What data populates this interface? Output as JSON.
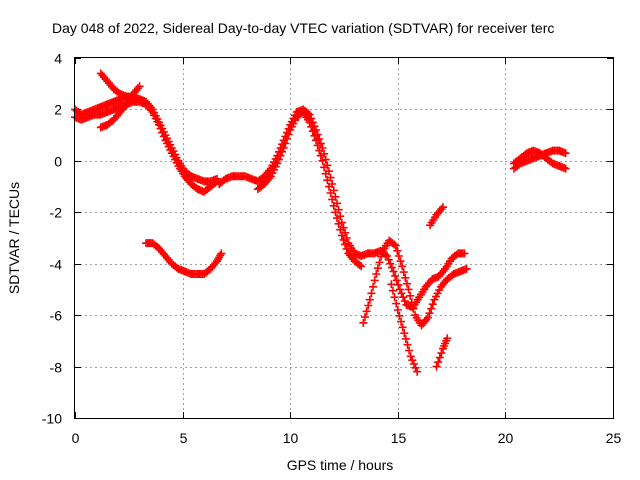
{
  "chart_data": {
    "type": "scatter",
    "title": "Day 048 of 2022, Sidereal Day-to-day VTEC variation (SDTVAR) for receiver terc",
    "xlabel": "GPS time / hours",
    "ylabel": "SDTVAR / TECUs",
    "xlim": [
      0,
      25
    ],
    "ylim": [
      -10,
      4
    ],
    "xticks": [
      "0",
      "5",
      "10",
      "15",
      "20",
      "25"
    ],
    "yticks": [
      "4",
      "2",
      "0",
      "-2",
      "-4",
      "-6",
      "-8",
      "-10"
    ],
    "grid": true,
    "marker": "+",
    "color": "#ff0000",
    "series": [
      {
        "segments": [
          [
            [
              0.0,
              2.0
            ],
            [
              0.3,
              1.8
            ],
            [
              0.6,
              1.9
            ],
            [
              0.9,
              2.0
            ],
            [
              1.2,
              2.1
            ],
            [
              1.5,
              2.2
            ],
            [
              1.8,
              2.3
            ],
            [
              2.1,
              2.4
            ],
            [
              2.4,
              2.5
            ],
            [
              2.7,
              2.5
            ],
            [
              3.0,
              2.4
            ],
            [
              3.3,
              2.3
            ],
            [
              3.6,
              2.0
            ],
            [
              3.9,
              1.5
            ],
            [
              4.2,
              1.0
            ],
            [
              4.5,
              0.5
            ],
            [
              4.8,
              0.0
            ],
            [
              5.1,
              -0.4
            ],
            [
              5.4,
              -0.6
            ],
            [
              5.7,
              -0.7
            ],
            [
              6.0,
              -0.8
            ],
            [
              6.3,
              -0.8
            ],
            [
              6.6,
              -0.7
            ]
          ],
          [
            [
              0.0,
              1.7
            ],
            [
              0.3,
              1.6
            ],
            [
              0.6,
              1.7
            ],
            [
              0.9,
              1.8
            ],
            [
              1.2,
              1.8
            ],
            [
              1.5,
              1.9
            ],
            [
              1.8,
              2.0
            ],
            [
              2.1,
              2.1
            ],
            [
              2.4,
              2.2
            ],
            [
              2.7,
              2.3
            ],
            [
              3.0,
              2.3
            ],
            [
              3.3,
              2.2
            ],
            [
              3.6,
              1.9
            ],
            [
              3.9,
              1.4
            ],
            [
              4.2,
              0.8
            ],
            [
              4.5,
              0.3
            ],
            [
              4.8,
              -0.2
            ],
            [
              5.1,
              -0.6
            ],
            [
              5.4,
              -0.9
            ],
            [
              5.7,
              -1.1
            ],
            [
              6.0,
              -1.2
            ],
            [
              6.3,
              -1.0
            ],
            [
              6.6,
              -0.8
            ]
          ],
          [
            [
              1.2,
              3.4
            ],
            [
              1.5,
              3.1
            ],
            [
              1.8,
              2.8
            ],
            [
              2.1,
              2.6
            ],
            [
              2.4,
              2.5
            ],
            [
              2.7,
              2.4
            ]
          ],
          [
            [
              1.2,
              1.3
            ],
            [
              1.5,
              1.4
            ],
            [
              1.8,
              1.6
            ],
            [
              2.1,
              1.9
            ],
            [
              2.4,
              2.2
            ],
            [
              2.7,
              2.6
            ],
            [
              3.0,
              2.9
            ]
          ],
          [
            [
              3.3,
              -3.2
            ],
            [
              3.6,
              -3.2
            ],
            [
              3.9,
              -3.4
            ],
            [
              4.2,
              -3.7
            ],
            [
              4.5,
              -4.0
            ],
            [
              4.8,
              -4.2
            ],
            [
              5.1,
              -4.3
            ],
            [
              5.4,
              -4.4
            ],
            [
              5.7,
              -4.4
            ],
            [
              6.0,
              -4.4
            ],
            [
              6.3,
              -4.2
            ],
            [
              6.6,
              -3.9
            ],
            [
              6.8,
              -3.6
            ]
          ],
          [
            [
              6.7,
              -0.9
            ],
            [
              7.0,
              -0.7
            ],
            [
              7.3,
              -0.6
            ],
            [
              7.6,
              -0.6
            ],
            [
              7.9,
              -0.6
            ],
            [
              8.2,
              -0.7
            ],
            [
              8.5,
              -0.8
            ],
            [
              8.8,
              -0.6
            ],
            [
              9.1,
              -0.3
            ],
            [
              9.4,
              0.2
            ],
            [
              9.7,
              0.8
            ],
            [
              10.0,
              1.4
            ],
            [
              10.3,
              1.9
            ],
            [
              10.6,
              2.0
            ],
            [
              10.9,
              1.8
            ],
            [
              11.2,
              1.2
            ],
            [
              11.5,
              0.5
            ],
            [
              11.8,
              -0.4
            ],
            [
              12.1,
              -1.4
            ],
            [
              12.4,
              -2.4
            ],
            [
              12.7,
              -3.2
            ],
            [
              13.0,
              -3.6
            ],
            [
              13.3,
              -3.7
            ],
            [
              13.6,
              -3.6
            ],
            [
              13.9,
              -3.6
            ],
            [
              14.2,
              -3.5
            ],
            [
              14.5,
              -3.7
            ],
            [
              14.8,
              -4.3
            ],
            [
              15.1,
              -5.0
            ],
            [
              15.4,
              -5.6
            ],
            [
              15.7,
              -5.7
            ],
            [
              16.0,
              -5.3
            ],
            [
              16.3,
              -4.9
            ],
            [
              16.6,
              -4.6
            ],
            [
              16.9,
              -4.5
            ],
            [
              17.2,
              -4.2
            ],
            [
              17.5,
              -3.8
            ],
            [
              17.8,
              -3.6
            ],
            [
              18.1,
              -3.6
            ]
          ],
          [
            [
              8.5,
              -1.1
            ],
            [
              8.8,
              -0.9
            ],
            [
              9.1,
              -0.6
            ],
            [
              9.4,
              -0.1
            ],
            [
              9.7,
              0.5
            ],
            [
              10.0,
              1.2
            ],
            [
              10.3,
              1.7
            ],
            [
              10.6,
              1.9
            ],
            [
              10.9,
              1.5
            ],
            [
              11.2,
              0.8
            ],
            [
              11.5,
              0.0
            ],
            [
              11.8,
              -1.0
            ],
            [
              12.1,
              -2.0
            ],
            [
              12.4,
              -2.9
            ],
            [
              12.7,
              -3.6
            ],
            [
              13.0,
              -3.9
            ],
            [
              13.3,
              -4.1
            ]
          ],
          [
            [
              13.4,
              -6.3
            ],
            [
              13.7,
              -5.4
            ],
            [
              14.0,
              -4.4
            ],
            [
              14.3,
              -3.5
            ],
            [
              14.6,
              -3.1
            ],
            [
              14.9,
              -3.3
            ],
            [
              15.2,
              -4.1
            ],
            [
              15.5,
              -5.0
            ],
            [
              15.8,
              -6.0
            ],
            [
              16.1,
              -6.4
            ],
            [
              16.4,
              -6.1
            ],
            [
              16.7,
              -5.4
            ],
            [
              17.0,
              -4.9
            ],
            [
              17.3,
              -4.6
            ],
            [
              17.6,
              -4.4
            ],
            [
              17.9,
              -4.3
            ],
            [
              18.2,
              -4.2
            ]
          ],
          [
            [
              14.7,
              -4.8
            ],
            [
              15.0,
              -5.8
            ],
            [
              15.3,
              -6.7
            ],
            [
              15.6,
              -7.6
            ],
            [
              15.9,
              -8.2
            ]
          ],
          [
            [
              16.5,
              -2.5
            ],
            [
              16.8,
              -2.1
            ],
            [
              17.1,
              -1.8
            ]
          ],
          [
            [
              16.8,
              -8.0
            ],
            [
              17.1,
              -7.3
            ],
            [
              17.3,
              -6.9
            ]
          ],
          [
            [
              20.4,
              -0.1
            ],
            [
              20.7,
              0.1
            ],
            [
              21.0,
              0.3
            ],
            [
              21.3,
              0.4
            ],
            [
              21.6,
              0.3
            ],
            [
              21.9,
              0.1
            ],
            [
              22.2,
              -0.1
            ],
            [
              22.5,
              -0.2
            ],
            [
              22.8,
              -0.3
            ]
          ],
          [
            [
              20.4,
              -0.3
            ],
            [
              20.7,
              -0.1
            ],
            [
              21.0,
              0.0
            ],
            [
              21.3,
              0.1
            ],
            [
              21.6,
              0.2
            ],
            [
              21.9,
              0.3
            ],
            [
              22.2,
              0.4
            ],
            [
              22.5,
              0.4
            ],
            [
              22.8,
              0.3
            ]
          ]
        ]
      }
    ]
  }
}
